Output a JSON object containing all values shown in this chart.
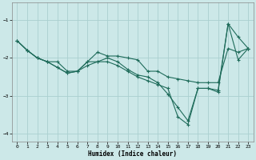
{
  "xlabel": "Humidex (Indice chaleur)",
  "background_color": "#cce8e8",
  "grid_color": "#aad0d0",
  "line_color": "#1e6b5a",
  "marker": "+",
  "xlim": [
    -0.5,
    23.5
  ],
  "ylim": [
    -4.2,
    -0.55
  ],
  "yticks": [
    -4,
    -3,
    -2,
    -1
  ],
  "xticks": [
    0,
    1,
    2,
    3,
    4,
    5,
    6,
    7,
    8,
    9,
    10,
    11,
    12,
    13,
    14,
    15,
    16,
    17,
    18,
    19,
    20,
    21,
    22,
    23
  ],
  "series1_x": [
    0,
    1,
    2,
    3,
    4,
    5,
    6,
    7,
    8,
    9,
    10,
    11,
    12,
    13,
    14,
    15,
    16,
    17,
    18,
    19,
    20,
    21,
    22,
    23
  ],
  "series1_y": [
    -1.55,
    -1.8,
    -2.0,
    -2.1,
    -2.1,
    -2.35,
    -2.35,
    -2.1,
    -1.85,
    -1.95,
    -1.95,
    -2.0,
    -2.05,
    -2.35,
    -2.35,
    -2.5,
    -2.55,
    -2.6,
    -2.65,
    -2.65,
    -2.65,
    -1.75,
    -1.85,
    -1.75
  ],
  "series2_x": [
    0,
    1,
    2,
    3,
    4,
    5,
    6,
    7,
    8,
    9,
    10,
    11,
    12,
    13,
    14,
    15,
    16,
    17,
    18,
    19,
    20,
    21,
    22,
    23
  ],
  "series2_y": [
    -1.55,
    -1.8,
    -2.0,
    -2.1,
    -2.25,
    -2.4,
    -2.35,
    -2.1,
    -2.1,
    -2.0,
    -2.1,
    -2.3,
    -2.45,
    -2.5,
    -2.65,
    -2.95,
    -3.3,
    -3.65,
    -2.8,
    -2.8,
    -2.85,
    -1.1,
    -1.45,
    -1.75
  ],
  "series3_x": [
    0,
    1,
    2,
    3,
    4,
    5,
    6,
    7,
    8,
    9,
    10,
    11,
    12,
    13,
    14,
    15,
    16,
    17,
    18,
    19,
    20,
    21,
    22,
    23
  ],
  "series3_y": [
    -1.55,
    -1.8,
    -2.0,
    -2.1,
    -2.25,
    -2.4,
    -2.35,
    -2.2,
    -2.1,
    -2.1,
    -2.2,
    -2.35,
    -2.5,
    -2.6,
    -2.7,
    -2.8,
    -3.55,
    -3.75,
    -2.8,
    -2.8,
    -2.9,
    -1.1,
    -2.05,
    -1.75
  ]
}
